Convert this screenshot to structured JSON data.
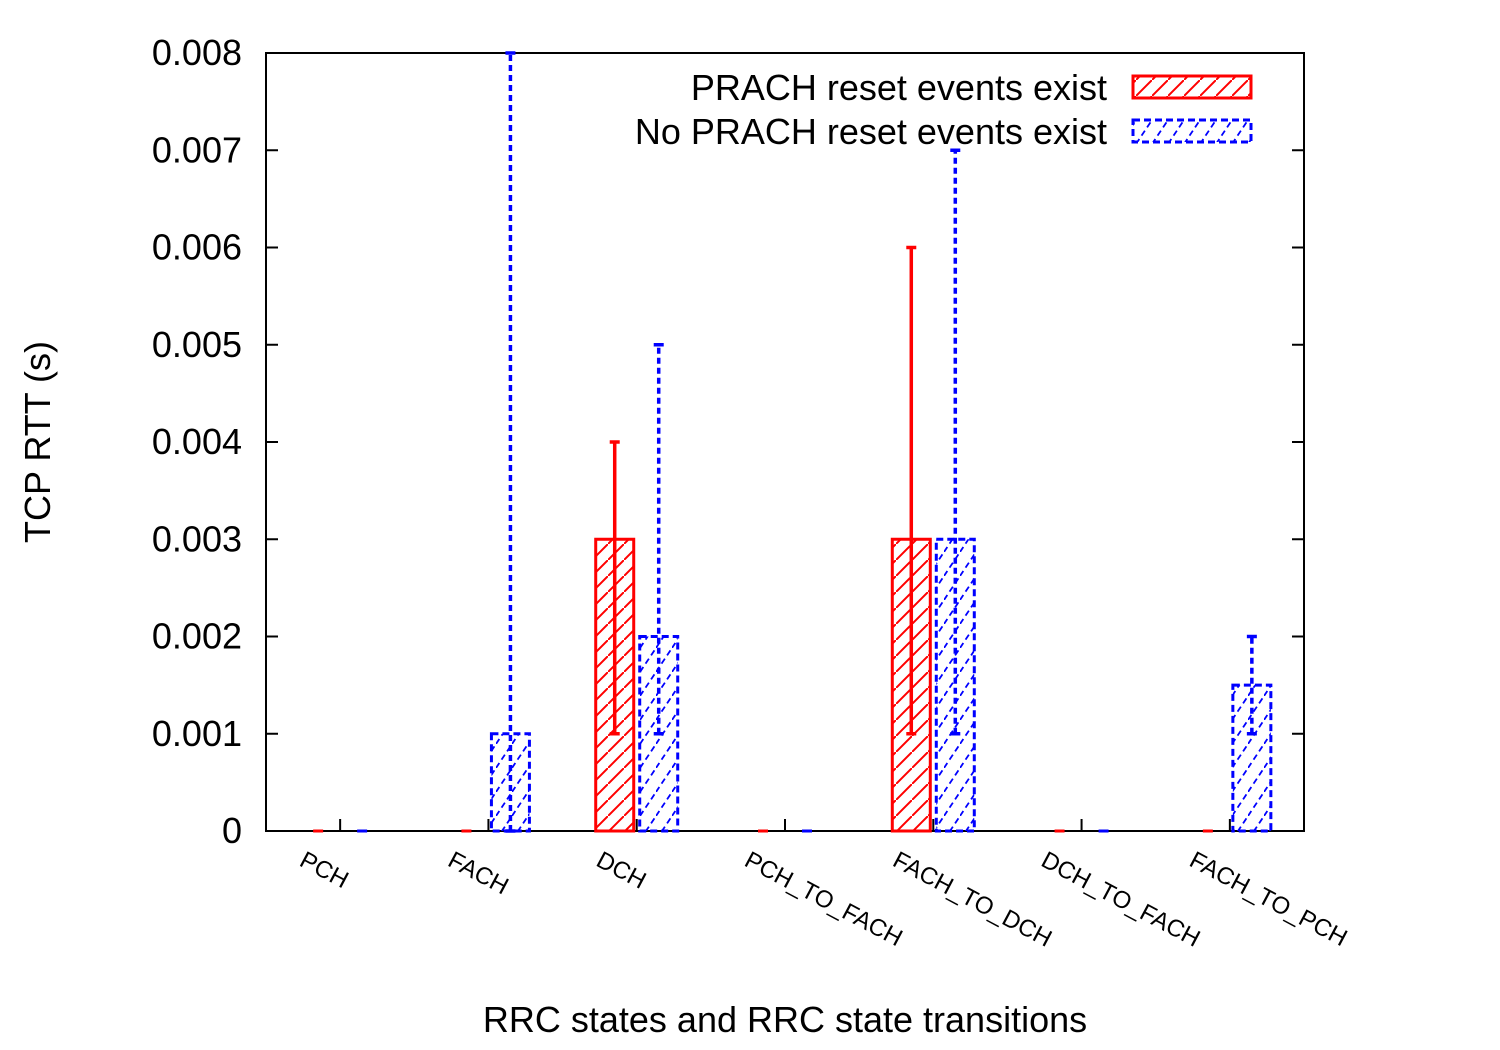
{
  "chart_data": {
    "type": "bar",
    "xlabel": "RRC states and RRC state transitions",
    "ylabel": "TCP RTT (s)",
    "ylim": [
      0,
      0.008
    ],
    "yticks": [
      "0",
      "0.001",
      "0.002",
      "0.003",
      "0.004",
      "0.005",
      "0.006",
      "0.007",
      "0.008"
    ],
    "categories": [
      "PCH",
      "FACH",
      "DCH",
      "PCH_TO_FACH",
      "FACH_TO_DCH",
      "DCH_TO_FACH",
      "FACH_TO_PCH"
    ],
    "legend_position": "top-right",
    "grid": false,
    "series": [
      {
        "name": "PRACH reset events exist",
        "color": "#ff0000",
        "pattern": "hatch-backslash",
        "values": [
          0,
          0,
          0.003,
          0,
          0.003,
          0,
          0
        ],
        "err_low": [
          0,
          0,
          0.001,
          0,
          0.001,
          0,
          0
        ],
        "err_high": [
          0,
          0,
          0.004,
          0,
          0.006,
          0,
          0
        ]
      },
      {
        "name": "No PRACH reset events exist",
        "color": "#0000ff",
        "pattern": "hatch-slash-dashed",
        "values": [
          0,
          0.001,
          0.002,
          0,
          0.003,
          0,
          0.0015
        ],
        "err_low": [
          0,
          0,
          0.001,
          0,
          0.001,
          0,
          0.001
        ],
        "err_high": [
          0,
          0.008,
          0.005,
          0,
          0.007,
          0,
          0.002
        ]
      }
    ]
  }
}
